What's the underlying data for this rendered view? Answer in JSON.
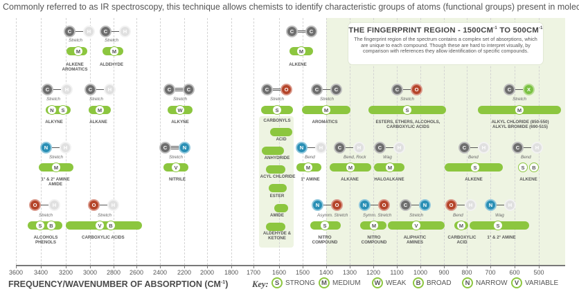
{
  "intro_text": "Commonly referred to as IR spectroscopy, this technique allows chemists to identify characteristic groups of atoms (functional groups) present in molecules.",
  "fingerprint": {
    "title": "THE FINGERPRINT REGION - 1500CM",
    "title_sup1": "-1",
    "title_mid": " TO 500CM",
    "title_sup2": "-1",
    "body": "The fingerprint region of the spectrum contains a complex set of absorptions, which are unique to each compound. Though these are hard to interpret visually, by comparison with references they allow identification of specific compounds."
  },
  "axis": {
    "title": "FREQUENCY/WAVENUMBER OF ABSORPTION (CM",
    "title_sup": "-1",
    "title_end": ")",
    "ticks": [
      "3600",
      "3400",
      "3200",
      "3000",
      "2800",
      "2600",
      "2400",
      "2200",
      "2000",
      "1800",
      "1700",
      "1600",
      "1500",
      "1400",
      "1300",
      "1200",
      "1100",
      "1000",
      "900",
      "800",
      "700",
      "600",
      "500"
    ]
  },
  "key": {
    "label": "Key:",
    "items": [
      {
        "letter": "S",
        "text": "STRONG"
      },
      {
        "letter": "M",
        "text": "MEDIUM"
      },
      {
        "letter": "W",
        "text": "WEAK"
      },
      {
        "letter": "B",
        "text": "BROAD"
      },
      {
        "letter": "N",
        "text": "NARROW"
      },
      {
        "letter": "V",
        "text": "VARIABLE"
      }
    ]
  },
  "groups": [
    {
      "id": "alkene-aromatics",
      "atoms": [
        "C",
        "H"
      ],
      "bond": 1,
      "vibration": "Stretch",
      "badges": [
        "M"
      ],
      "label": [
        "ALKENE",
        "AROMATICS"
      ]
    },
    {
      "id": "aldehyde",
      "atoms": [
        "C",
        "H"
      ],
      "bond": 1,
      "vibration": "Stretch",
      "badges": [
        "M"
      ],
      "label": [
        "ALDEHYDE"
      ]
    },
    {
      "id": "alkene-top",
      "atoms": [
        "C",
        "C"
      ],
      "bond": 2,
      "vibration": "",
      "badges": [
        "M"
      ],
      "label": [
        "ALKENE"
      ]
    },
    {
      "id": "alkyne-ch",
      "atoms": [
        "C",
        "H"
      ],
      "bond": 1,
      "vibration": "Stretch",
      "badges": [
        "N",
        "S"
      ],
      "label": [
        "ALKYNE"
      ]
    },
    {
      "id": "alkane-ch",
      "atoms": [
        "C",
        "H"
      ],
      "bond": 1,
      "vibration": "Stretch",
      "badges": [
        "M"
      ],
      "label": [
        "ALKANE"
      ]
    },
    {
      "id": "alkyne-cc",
      "atoms": [
        "C",
        "C"
      ],
      "bond": 3,
      "vibration": "Stretch",
      "badges": [
        "W"
      ],
      "label": [
        "ALKYNE"
      ]
    },
    {
      "id": "carbonyls",
      "atoms": [
        "C",
        "O"
      ],
      "bond": 2,
      "vibration": "Stretch",
      "badges": [
        "S"
      ],
      "label": [
        "CARBONYLS"
      ]
    },
    {
      "id": "aromatics-cc",
      "atoms": [
        "C",
        "C"
      ],
      "bond": 1,
      "vibration": "Stretch",
      "badges": [
        "M"
      ],
      "label": [
        "AROMATICS"
      ]
    },
    {
      "id": "esters-co",
      "atoms": [
        "C",
        "O"
      ],
      "bond": 1,
      "vibration": "Stretch",
      "badges": [
        "S"
      ],
      "label": [
        "ESTERS, ETHERS, ALCOHOLS,",
        "CARBOXYLIC ACIDS"
      ]
    },
    {
      "id": "alkyl-halide",
      "atoms": [
        "C",
        "X"
      ],
      "bond": 1,
      "vibration": "Stretch",
      "badges": [
        "M"
      ],
      "label": [
        "ALKYL CHLORIDE (850-550)",
        "ALKYL BROMIDE (690-515)"
      ]
    },
    {
      "id": "amine-nh",
      "atoms": [
        "N",
        "H"
      ],
      "bond": 1,
      "vibration": "Stretch",
      "badges": [
        "M"
      ],
      "label": [
        "1° & 2° AMINE",
        "AMIDE"
      ]
    },
    {
      "id": "nitrile",
      "atoms": [
        "C",
        "N"
      ],
      "bond": 3,
      "vibration": "Stretch",
      "badges": [
        "V"
      ],
      "label": [
        "NITRILE"
      ]
    },
    {
      "id": "amine-bend",
      "atoms": [
        "N",
        "H"
      ],
      "bond": 1,
      "vibration": "Bend",
      "badges": [
        "M"
      ],
      "label": [
        "1° AMINE"
      ]
    },
    {
      "id": "alkane-bend",
      "atoms": [
        "C",
        "H"
      ],
      "bond": 1,
      "vibration": "Bend, Rock",
      "badges": [
        "M"
      ],
      "label": [
        "ALKANE"
      ]
    },
    {
      "id": "haloalkane",
      "atoms": [
        "C",
        "H"
      ],
      "bond": 1,
      "vibration": "Wag",
      "badges": [
        "M"
      ],
      "label": [
        "HALOALKANE"
      ]
    },
    {
      "id": "alkene-bend",
      "atoms": [
        "C",
        "H"
      ],
      "bond": 1,
      "vibration": "Bend",
      "badges": [
        "S"
      ],
      "label": [
        "ALKENE"
      ]
    },
    {
      "id": "alkene-bend2",
      "atoms": [
        "C",
        "H"
      ],
      "bond": 1,
      "vibration": "Bend",
      "badges": [
        "S",
        "B"
      ],
      "label": [
        "ALKENE"
      ]
    },
    {
      "id": "alcohols",
      "atoms": [
        "O",
        "H"
      ],
      "bond": 1,
      "vibration": "Stretch",
      "badges": [
        "S",
        "B"
      ],
      "label": [
        "ALCOHOLS",
        "PHENOLS"
      ]
    },
    {
      "id": "carboxylic",
      "atoms": [
        "O",
        "H"
      ],
      "bond": 1,
      "vibration": "Stretch",
      "badges": [
        "V",
        "B"
      ],
      "label": [
        "CARBOXYLIC ACIDS"
      ]
    },
    {
      "id": "nitro-asym",
      "atoms": [
        "N",
        "O"
      ],
      "bond": 1,
      "vibration": "Asymm. Stretch",
      "badges": [
        "S"
      ],
      "label": [
        "NITRO",
        "COMPOUND"
      ]
    },
    {
      "id": "nitro-sym",
      "atoms": [
        "N",
        "O"
      ],
      "bond": 1,
      "vibration": "Symm. Stretch",
      "badges": [
        "M"
      ],
      "label": [
        "NITRO",
        "COMPOUND"
      ]
    },
    {
      "id": "aliphatic-amines",
      "atoms": [
        "C",
        "N"
      ],
      "bond": 1,
      "vibration": "Stretch",
      "badges": [
        "V"
      ],
      "label": [
        "ALIPHATIC",
        "AMINES"
      ]
    },
    {
      "id": "carboxylic-bend",
      "atoms": [
        "O",
        "H"
      ],
      "bond": 1,
      "vibration": "Bend",
      "badges": [
        "M"
      ],
      "label": [
        "CARBOXYLIC",
        "ACID"
      ]
    },
    {
      "id": "amine-wag",
      "atoms": [
        "N",
        "H"
      ],
      "bond": 1,
      "vibration": "Wag",
      "badges": [
        "S"
      ],
      "label": [
        "1° & 2° AMINE"
      ]
    }
  ],
  "carbonyl_types": [
    {
      "label": "ACID"
    },
    {
      "label": "ANHYDRIDE"
    },
    {
      "label": "ACYL CHLORIDE"
    },
    {
      "label": "ESTER"
    },
    {
      "label": "AMIDE"
    },
    {
      "label": "ALDEHYDE & KETONE"
    }
  ]
}
